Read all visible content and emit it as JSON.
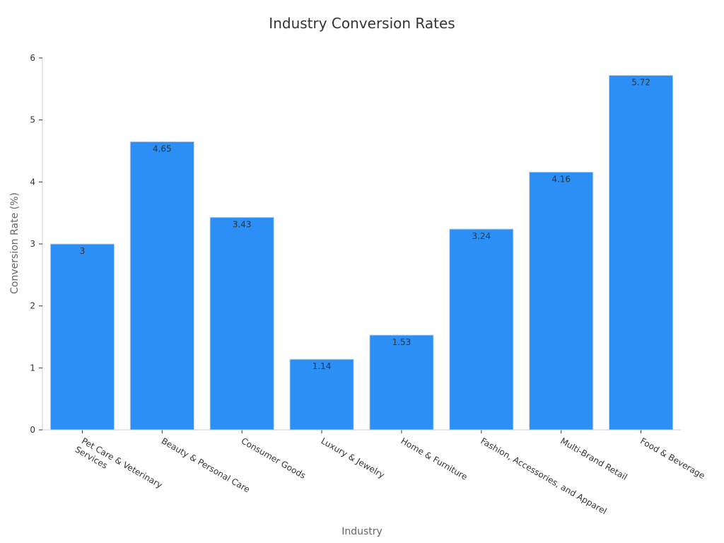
{
  "chart_data": {
    "type": "bar",
    "title": "Industry Conversion Rates",
    "xlabel": "Industry",
    "ylabel": "Conversion Rate (%)",
    "categories": [
      "Pet Care & Veterinary Services",
      "Beauty & Personal Care",
      "Consumer Goods",
      "Luxury & Jewelry",
      "Home & Furniture",
      "Fashion, Accessories, and Apparel",
      "Multi-Brand Retail",
      "Food & Beverage"
    ],
    "category_lines": [
      [
        "Pet Care & Veterinary",
        "Services"
      ],
      [
        "Beauty & Personal Care"
      ],
      [
        "Consumer Goods"
      ],
      [
        "Luxury & Jewelry"
      ],
      [
        "Home & Furniture"
      ],
      [
        "Fashion, Accessories, and Apparel"
      ],
      [
        "Multi-Brand Retail"
      ],
      [
        "Food & Beverage"
      ]
    ],
    "values": [
      3,
      4.65,
      3.43,
      1.14,
      1.53,
      3.24,
      4.16,
      5.72
    ],
    "data_labels": [
      "3",
      "4.65",
      "3.43",
      "1.14",
      "1.53",
      "3.24",
      "4.16",
      "5.72"
    ],
    "ylim": [
      0,
      6
    ],
    "yticks": [
      0,
      1,
      2,
      3,
      4,
      5,
      6
    ],
    "bar_color": "#2b8ff5",
    "grid": false,
    "legend": "none"
  }
}
